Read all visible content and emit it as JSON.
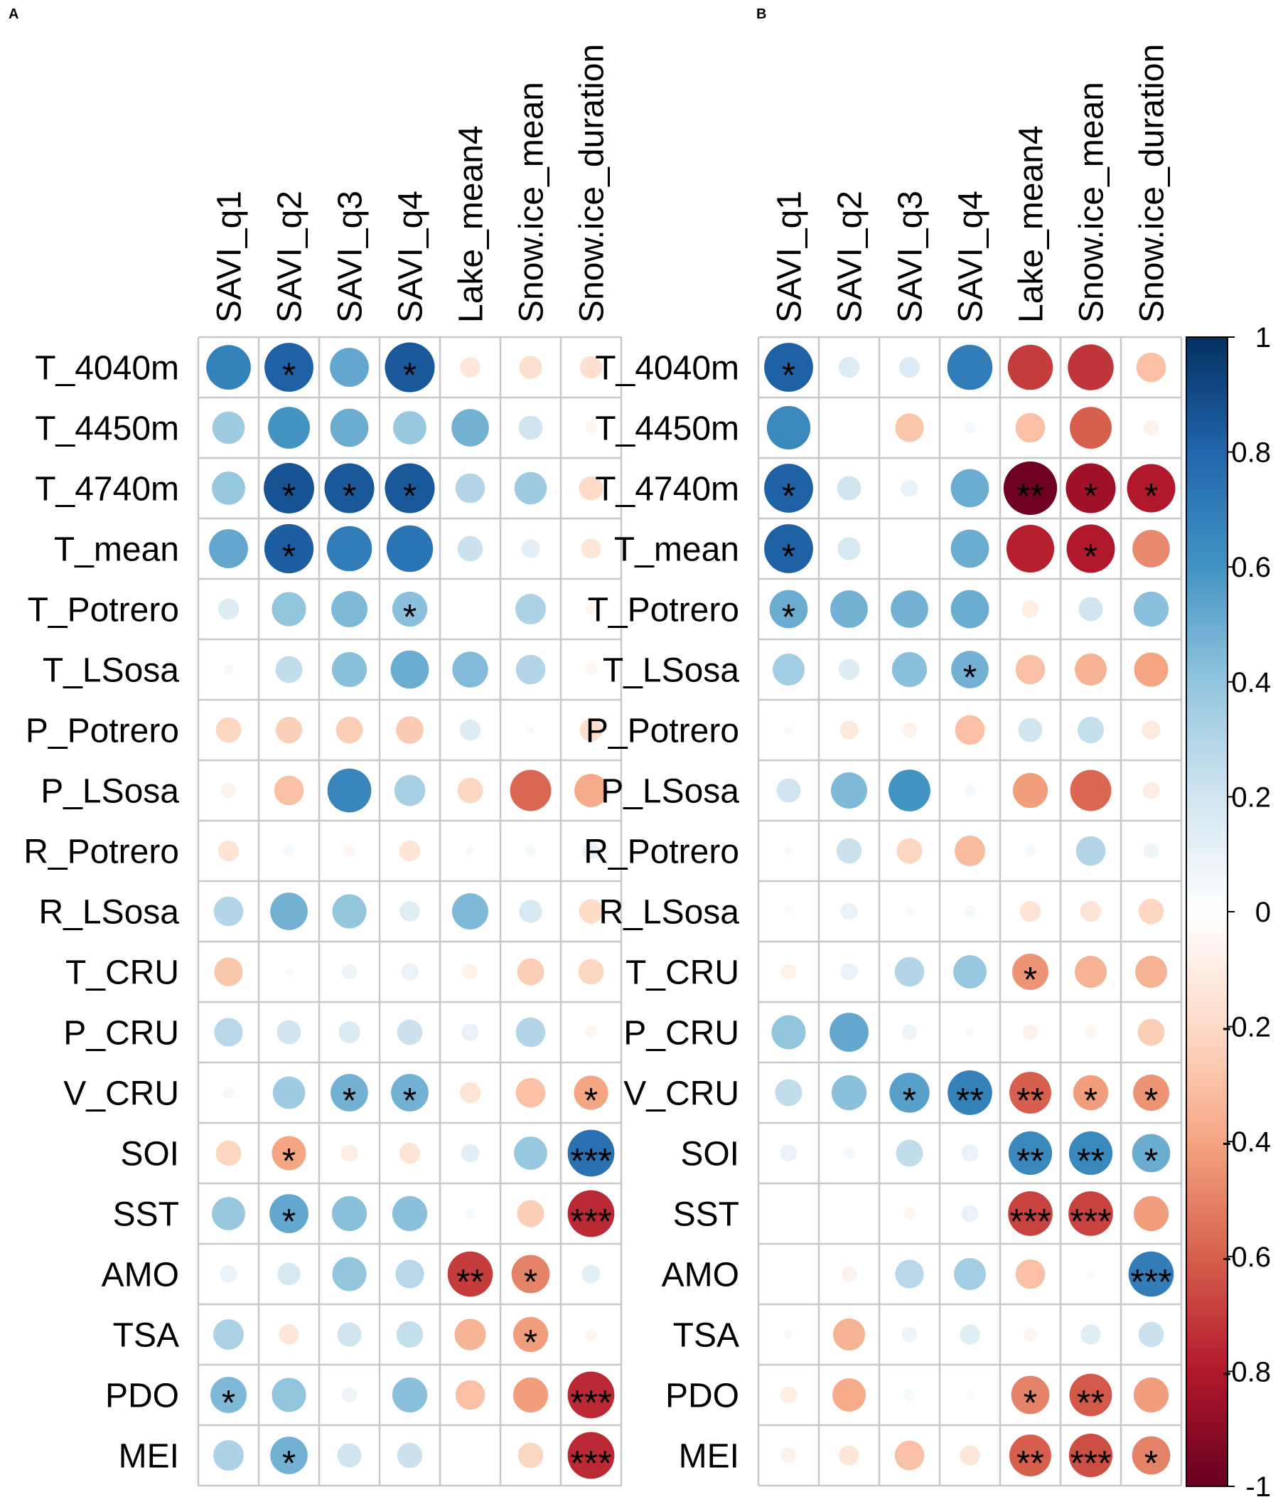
{
  "chart_data": {
    "type": "heatmap",
    "subtype": "correlation-circle-matrix",
    "rows": [
      "T_4040m",
      "T_4450m",
      "T_4740m",
      "T_mean",
      "T_Potrero",
      "T_LSosa",
      "P_Potrero",
      "P_LSosa",
      "R_Potrero",
      "R_LSosa",
      "T_CRU",
      "P_CRU",
      "V_CRU",
      "SOI",
      "SST",
      "AMO",
      "TSA",
      "PDO",
      "MEI"
    ],
    "columns": [
      "SAVI_q1",
      "SAVI_q2",
      "SAVI_q3",
      "SAVI_q4",
      "Lake_mean4",
      "Snow.ice_mean",
      "Snow.ice_duration"
    ],
    "color_scale": {
      "min": -1,
      "max": 1,
      "ticks": [
        1,
        0.8,
        0.6,
        0.4,
        0.2,
        0,
        -0.2,
        -0.4,
        -0.6,
        -0.8,
        -1
      ],
      "tick_labels": [
        "1",
        "0.8",
        "0.6",
        "0.4",
        "0.2",
        "0",
        "-0.2",
        "-0.4",
        "-0.6",
        "-0.8",
        "-1"
      ],
      "stops": [
        "#67001F",
        "#B2182B",
        "#D6604D",
        "#F4A582",
        "#FDDBC7",
        "#FFFFFF",
        "#D1E5F0",
        "#92C5DE",
        "#4393C3",
        "#2166AC",
        "#053061"
      ]
    },
    "panels": [
      {
        "label": "A",
        "values": [
          [
            0.68,
            0.82,
            0.52,
            0.85,
            -0.14,
            -0.18,
            -0.17
          ],
          [
            0.36,
            0.6,
            0.5,
            0.38,
            0.48,
            0.2,
            -0.05
          ],
          [
            0.38,
            0.87,
            0.85,
            0.85,
            0.3,
            0.36,
            -0.2
          ],
          [
            0.52,
            0.83,
            0.7,
            0.74,
            0.22,
            0.12,
            -0.14
          ],
          [
            0.15,
            0.4,
            0.45,
            0.42,
            0,
            0.32,
            -0.05
          ],
          [
            0.04,
            0.25,
            0.42,
            0.5,
            0.44,
            0.3,
            -0.05
          ],
          [
            -0.22,
            -0.24,
            -0.25,
            -0.26,
            0.15,
            0.03,
            -0.18
          ],
          [
            -0.08,
            -0.3,
            0.66,
            0.33,
            -0.22,
            -0.58,
            -0.38
          ],
          [
            -0.15,
            0.05,
            -0.05,
            -0.15,
            0.03,
            0.05,
            0.1
          ],
          [
            0.3,
            0.48,
            0.4,
            0.14,
            0.45,
            0.18,
            -0.2
          ],
          [
            -0.28,
            0.03,
            0.08,
            0.1,
            -0.08,
            -0.25,
            -0.22
          ],
          [
            0.28,
            0.2,
            0.16,
            0.22,
            0.1,
            0.3,
            -0.05
          ],
          [
            0.05,
            0.36,
            0.48,
            0.48,
            -0.15,
            -0.3,
            -0.4
          ],
          [
            -0.22,
            -0.4,
            -0.1,
            -0.15,
            0.12,
            0.38,
            0.75
          ],
          [
            0.38,
            0.52,
            0.42,
            0.42,
            0.04,
            -0.25,
            -0.75
          ],
          [
            0.1,
            0.18,
            0.4,
            0.28,
            -0.7,
            -0.5,
            0.12
          ],
          [
            0.32,
            -0.14,
            0.2,
            0.24,
            -0.34,
            -0.42,
            -0.05
          ],
          [
            0.45,
            0.4,
            0.08,
            0.42,
            -0.3,
            -0.42,
            -0.75
          ],
          [
            0.32,
            0.48,
            0.2,
            0.22,
            0,
            -0.22,
            -0.75
          ]
        ],
        "significance": [
          [
            "",
            "*",
            "",
            "*",
            "",
            "",
            ""
          ],
          [
            "",
            "",
            "",
            "",
            "",
            "",
            ""
          ],
          [
            "",
            "*",
            "*",
            "*",
            "",
            "",
            ""
          ],
          [
            "",
            "*",
            "",
            "",
            "",
            "",
            ""
          ],
          [
            "",
            "",
            "",
            "*",
            "",
            "",
            ""
          ],
          [
            "",
            "",
            "",
            "",
            "",
            "",
            ""
          ],
          [
            "",
            "",
            "",
            "",
            "",
            "",
            ""
          ],
          [
            "",
            "",
            "",
            "",
            "",
            "",
            ""
          ],
          [
            "",
            "",
            "",
            "",
            "",
            "",
            ""
          ],
          [
            "",
            "",
            "",
            "",
            "",
            "",
            ""
          ],
          [
            "",
            "",
            "",
            "",
            "",
            "",
            ""
          ],
          [
            "",
            "",
            "",
            "",
            "",
            "",
            ""
          ],
          [
            "",
            "",
            "*",
            "*",
            "",
            "",
            "*"
          ],
          [
            "",
            "*",
            "",
            "",
            "",
            "",
            "***"
          ],
          [
            "",
            "*",
            "",
            "",
            "",
            "",
            "***"
          ],
          [
            "",
            "",
            "",
            "",
            "**",
            "*",
            ""
          ],
          [
            "",
            "",
            "",
            "",
            "",
            "*",
            ""
          ],
          [
            "*",
            "",
            "",
            "",
            "",
            "",
            "***"
          ],
          [
            "",
            "*",
            "",
            "",
            "",
            "",
            "***"
          ]
        ]
      },
      {
        "label": "B",
        "values": [
          [
            0.82,
            0.15,
            0.15,
            0.7,
            -0.7,
            -0.72,
            -0.3
          ],
          [
            0.65,
            0,
            -0.28,
            0.05,
            -0.3,
            -0.6,
            -0.08
          ],
          [
            0.82,
            0.2,
            0.1,
            0.5,
            -0.98,
            -0.85,
            -0.8
          ],
          [
            0.82,
            0.18,
            0,
            0.5,
            -0.78,
            -0.8,
            -0.48
          ],
          [
            0.5,
            0.48,
            0.48,
            0.5,
            -0.1,
            0.2,
            0.42
          ],
          [
            0.35,
            0.15,
            0.42,
            0.48,
            -0.3,
            -0.35,
            -0.4
          ],
          [
            0.03,
            -0.12,
            -0.08,
            -0.3,
            0.2,
            0.24,
            -0.12
          ],
          [
            0.2,
            0.45,
            0.6,
            0.05,
            -0.42,
            -0.58,
            -0.1
          ],
          [
            0.03,
            0.22,
            -0.22,
            -0.32,
            0.05,
            0.3,
            0.08
          ],
          [
            0.03,
            0.1,
            0.03,
            0.05,
            -0.15,
            -0.15,
            -0.22
          ],
          [
            -0.08,
            0.1,
            0.3,
            0.38,
            -0.45,
            -0.35,
            -0.35
          ],
          [
            0.4,
            0.52,
            0.08,
            0.03,
            -0.08,
            -0.05,
            -0.25
          ],
          [
            0.25,
            0.42,
            0.55,
            0.68,
            -0.6,
            -0.42,
            -0.45
          ],
          [
            0.1,
            0.05,
            0.25,
            0.1,
            0.65,
            0.65,
            0.5
          ],
          [
            0,
            0,
            -0.05,
            0.1,
            -0.68,
            -0.68,
            -0.42
          ],
          [
            0,
            -0.08,
            0.28,
            0.35,
            -0.3,
            0.03,
            0.7
          ],
          [
            0.03,
            -0.35,
            0.08,
            0.14,
            -0.06,
            0.14,
            0.22
          ],
          [
            -0.1,
            -0.38,
            0.05,
            0.03,
            -0.5,
            -0.62,
            -0.42
          ],
          [
            -0.08,
            -0.14,
            -0.3,
            -0.14,
            -0.6,
            -0.65,
            -0.5
          ]
        ],
        "significance": [
          [
            "*",
            "",
            "",
            "",
            "",
            "",
            ""
          ],
          [
            "",
            "",
            "",
            "",
            "",
            "",
            ""
          ],
          [
            "*",
            "",
            "",
            "",
            "**",
            "*",
            "*"
          ],
          [
            "*",
            "",
            "",
            "",
            "",
            "*",
            ""
          ],
          [
            "*",
            "",
            "",
            "",
            "",
            "",
            ""
          ],
          [
            "",
            "",
            "",
            "*",
            "",
            "",
            ""
          ],
          [
            "",
            "",
            "",
            "",
            "",
            "",
            ""
          ],
          [
            "",
            "",
            "",
            "",
            "",
            "",
            ""
          ],
          [
            "",
            "",
            "",
            "",
            "",
            "",
            ""
          ],
          [
            "",
            "",
            "",
            "",
            "",
            "",
            ""
          ],
          [
            "",
            "",
            "",
            "",
            "*",
            "",
            ""
          ],
          [
            "",
            "",
            "",
            "",
            "",
            "",
            ""
          ],
          [
            "",
            "",
            "*",
            "**",
            "**",
            "*",
            "*"
          ],
          [
            "",
            "",
            "",
            "",
            "**",
            "**",
            "*"
          ],
          [
            "",
            "",
            "",
            "",
            "***",
            "***",
            ""
          ],
          [
            "",
            "",
            "",
            "",
            "",
            "",
            "***"
          ],
          [
            "",
            "",
            "",
            "",
            "",
            "",
            ""
          ],
          [
            "",
            "",
            "",
            "",
            "*",
            "**",
            ""
          ],
          [
            "",
            "",
            "",
            "",
            "**",
            "***",
            "*"
          ]
        ]
      }
    ]
  }
}
